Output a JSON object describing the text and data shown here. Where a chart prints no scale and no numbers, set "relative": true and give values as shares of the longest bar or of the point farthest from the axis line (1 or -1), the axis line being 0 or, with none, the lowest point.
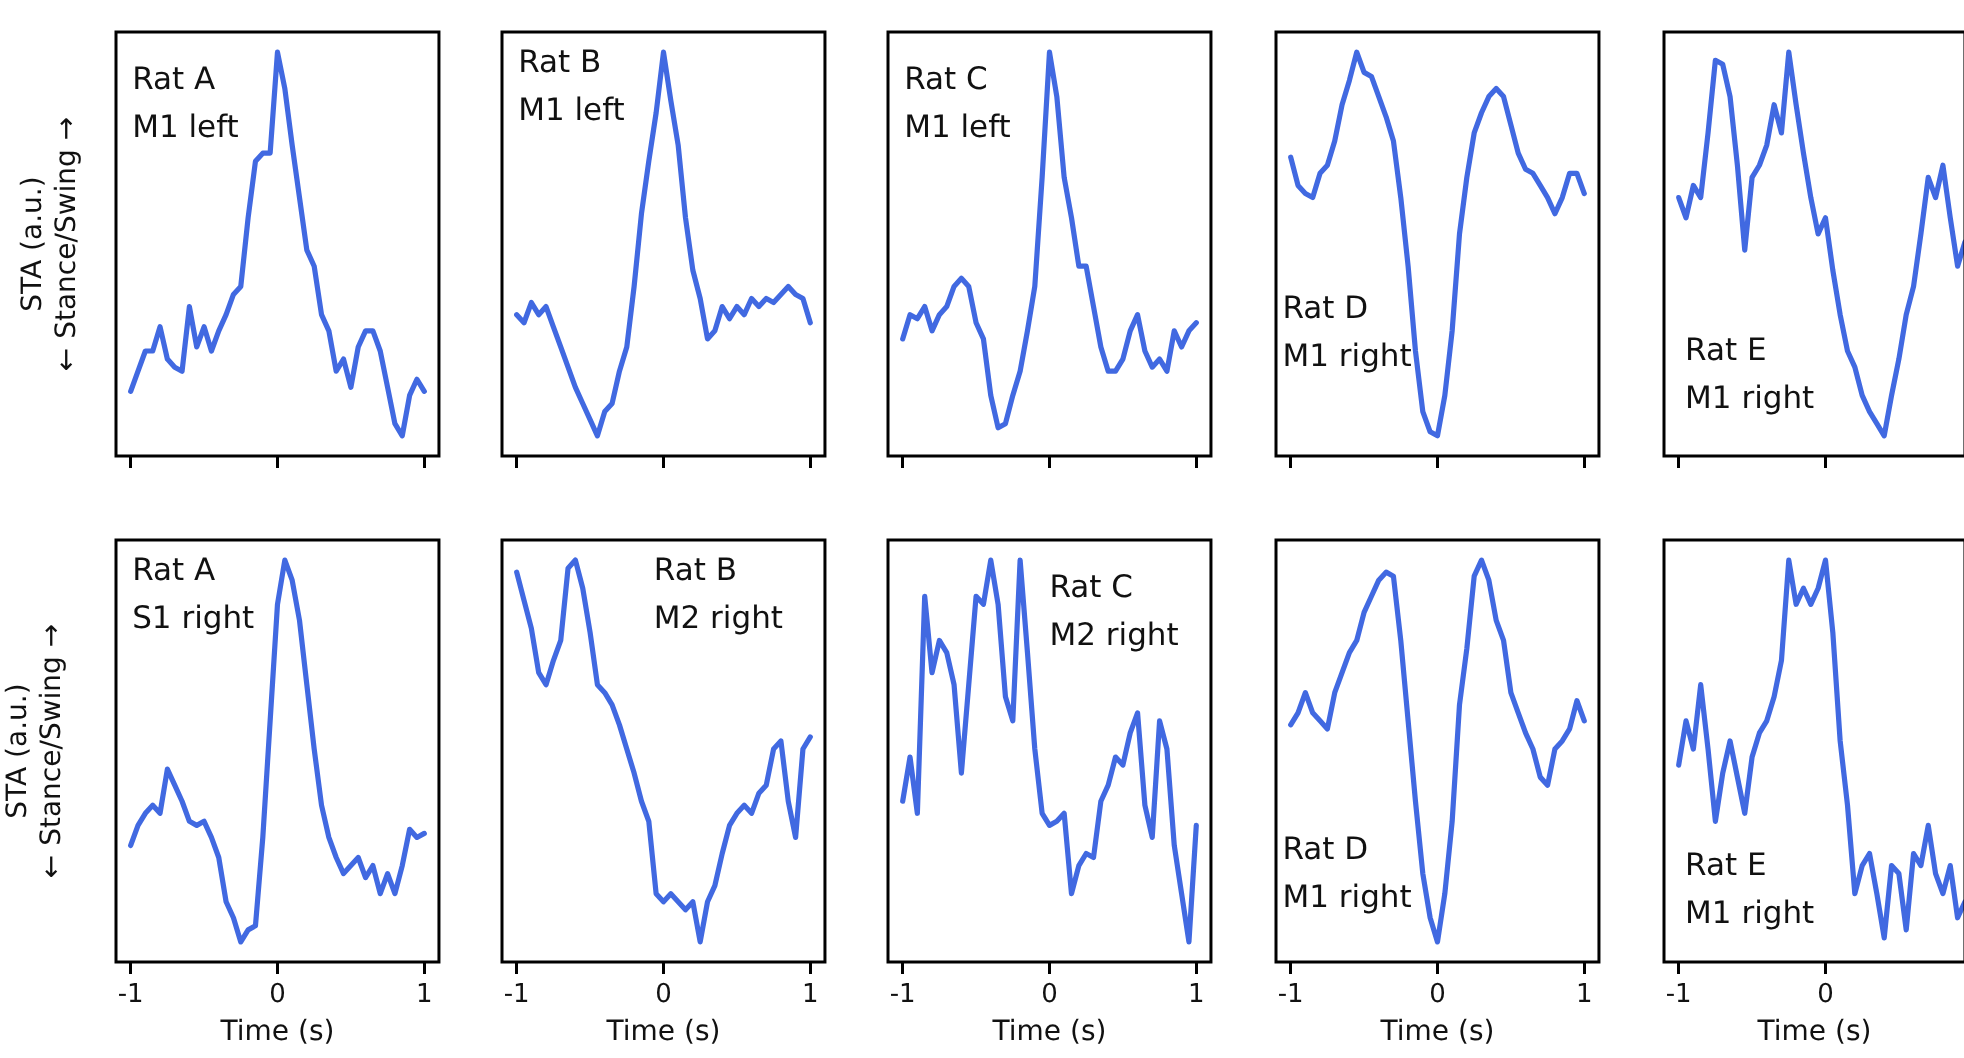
{
  "chart_data": [
    {
      "type": "line",
      "relative": true,
      "annotations": [
        "Rat A",
        "M1 left"
      ],
      "ylabel": "STA (a.u.)\n← Stance/Swing →",
      "tick_labels": false,
      "grid": false,
      "legend": false,
      "marker": "none",
      "categories": [
        null,
        null,
        null,
        null,
        null,
        null,
        null,
        null,
        null,
        null,
        null,
        null,
        null,
        null,
        null,
        null,
        null,
        null,
        null,
        null,
        null,
        null,
        null,
        null,
        null,
        null,
        null,
        null,
        null,
        null,
        null,
        null,
        null,
        null,
        null,
        null,
        null,
        null,
        null,
        null,
        null
      ],
      "series": [
        {
          "color": "#4169e1",
          "values": [
            0.16,
            0.21,
            0.26,
            0.26,
            0.32,
            0.24,
            0.22,
            0.21,
            0.37,
            0.27,
            0.32,
            0.26,
            0.31,
            0.35,
            0.4,
            0.42,
            0.59,
            0.73,
            0.75,
            0.75,
            1,
            0.91,
            0.77,
            0.64,
            0.51,
            0.47,
            0.35,
            0.31,
            0.21,
            0.24,
            0.17,
            0.27,
            0.31,
            0.31,
            0.26,
            0.17,
            0.08,
            0.05,
            0.15,
            0.19,
            0.16
          ]
        }
      ]
    },
    {
      "type": "line",
      "relative": true,
      "annotations": [
        "Rat B",
        "M1 left"
      ],
      "tick_labels": false,
      "grid": false,
      "legend": false,
      "marker": "none",
      "categories": [
        null,
        null,
        null,
        null,
        null,
        null,
        null,
        null,
        null,
        null,
        null,
        null,
        null,
        null,
        null,
        null,
        null,
        null,
        null,
        null,
        null,
        null,
        null,
        null,
        null,
        null,
        null,
        null,
        null,
        null,
        null,
        null,
        null,
        null,
        null,
        null,
        null,
        null,
        null,
        null,
        null
      ],
      "series": [
        {
          "color": "#4169e1",
          "values": [
            0.35,
            0.33,
            0.38,
            0.35,
            0.37,
            0.32,
            0.27,
            0.22,
            0.17,
            0.13,
            0.09,
            0.05,
            0.11,
            0.13,
            0.21,
            0.27,
            0.42,
            0.6,
            0.73,
            0.85,
            1,
            0.88,
            0.77,
            0.59,
            0.46,
            0.39,
            0.29,
            0.31,
            0.37,
            0.34,
            0.37,
            0.35,
            0.39,
            0.37,
            0.39,
            0.38,
            0.4,
            0.42,
            0.4,
            0.39,
            0.33
          ]
        }
      ]
    },
    {
      "type": "line",
      "relative": true,
      "annotations": [
        "Rat C",
        "M1 left"
      ],
      "tick_labels": false,
      "grid": false,
      "legend": false,
      "marker": "none",
      "categories": [
        null,
        null,
        null,
        null,
        null,
        null,
        null,
        null,
        null,
        null,
        null,
        null,
        null,
        null,
        null,
        null,
        null,
        null,
        null,
        null,
        null,
        null,
        null,
        null,
        null,
        null,
        null,
        null,
        null,
        null,
        null,
        null,
        null,
        null,
        null,
        null,
        null,
        null,
        null,
        null,
        null
      ],
      "series": [
        {
          "color": "#4169e1",
          "values": [
            0.29,
            0.35,
            0.34,
            0.37,
            0.31,
            0.35,
            0.37,
            0.42,
            0.44,
            0.42,
            0.33,
            0.29,
            0.15,
            0.07,
            0.08,
            0.15,
            0.21,
            0.31,
            0.42,
            0.69,
            1,
            0.89,
            0.69,
            0.59,
            0.47,
            0.47,
            0.37,
            0.27,
            0.21,
            0.21,
            0.24,
            0.31,
            0.35,
            0.26,
            0.22,
            0.24,
            0.21,
            0.31,
            0.27,
            0.31,
            0.33
          ]
        }
      ]
    },
    {
      "type": "line",
      "relative": true,
      "annotations": [
        "Rat D",
        "M1 right"
      ],
      "tick_labels": false,
      "grid": false,
      "legend": false,
      "marker": "none",
      "categories": [
        null,
        null,
        null,
        null,
        null,
        null,
        null,
        null,
        null,
        null,
        null,
        null,
        null,
        null,
        null,
        null,
        null,
        null,
        null,
        null,
        null,
        null,
        null,
        null,
        null,
        null,
        null,
        null,
        null,
        null,
        null,
        null,
        null,
        null,
        null,
        null,
        null,
        null,
        null,
        null,
        null
      ],
      "series": [
        {
          "color": "#4169e1",
          "values": [
            0.74,
            0.67,
            0.65,
            0.64,
            0.7,
            0.72,
            0.78,
            0.87,
            0.93,
            1,
            0.95,
            0.94,
            0.89,
            0.84,
            0.78,
            0.64,
            0.47,
            0.26,
            0.11,
            0.06,
            0.05,
            0.15,
            0.31,
            0.55,
            0.69,
            0.8,
            0.85,
            0.89,
            0.91,
            0.89,
            0.82,
            0.75,
            0.71,
            0.7,
            0.67,
            0.64,
            0.6,
            0.64,
            0.7,
            0.7,
            0.65
          ]
        }
      ]
    },
    {
      "type": "line",
      "relative": true,
      "annotations": [
        "Rat E",
        "M1 right"
      ],
      "tick_labels": false,
      "grid": false,
      "legend": false,
      "marker": "none",
      "categories": [
        null,
        null,
        null,
        null,
        null,
        null,
        null,
        null,
        null,
        null,
        null,
        null,
        null,
        null,
        null,
        null,
        null,
        null,
        null,
        null,
        null,
        null,
        null,
        null,
        null,
        null,
        null,
        null,
        null,
        null,
        null,
        null,
        null,
        null,
        null,
        null,
        null,
        null,
        null,
        null
      ],
      "series": [
        {
          "color": "#4169e1",
          "values": [
            0.64,
            0.59,
            0.67,
            0.64,
            0.8,
            0.98,
            0.97,
            0.89,
            0.72,
            0.51,
            0.69,
            0.72,
            0.77,
            0.87,
            0.8,
            1,
            0.87,
            0.75,
            0.64,
            0.55,
            0.59,
            0.46,
            0.35,
            0.26,
            0.22,
            0.15,
            0.11,
            0.08,
            0.05,
            0.15,
            0.24,
            0.35,
            0.42,
            0.55,
            0.69,
            0.64,
            0.72,
            0.59,
            0.47,
            0.53
          ]
        }
      ]
    },
    {
      "type": "line",
      "relative": true,
      "annotations": [
        "Rat A",
        "S1 right"
      ],
      "ylabel": "STA (a.u.)\n← Stance/Swing →",
      "xlabel": "Time (s)",
      "tick_labels": "x",
      "grid": false,
      "legend": false,
      "marker": "none",
      "xlim": [
        -1.1,
        1.1
      ],
      "xticks": [
        -1,
        0,
        1
      ],
      "x": [
        -1,
        -0.95,
        -0.9,
        -0.85,
        -0.8,
        -0.75,
        -0.7,
        -0.65,
        -0.6,
        -0.55,
        -0.5,
        -0.45,
        -0.4,
        -0.35,
        -0.3,
        -0.25,
        -0.2,
        -0.15,
        -0.1,
        -0.05,
        0,
        0.05,
        0.1,
        0.15,
        0.2,
        0.25,
        0.3,
        0.35,
        0.4,
        0.45,
        0.5,
        0.55,
        0.6,
        0.65,
        0.7,
        0.75,
        0.8,
        0.85,
        0.9,
        0.95,
        1
      ],
      "series": [
        {
          "color": "#4169e1",
          "values": [
            0.29,
            0.34,
            0.37,
            0.39,
            0.37,
            0.48,
            0.44,
            0.4,
            0.35,
            0.34,
            0.35,
            0.31,
            0.26,
            0.15,
            0.11,
            0.05,
            0.08,
            0.09,
            0.31,
            0.6,
            0.89,
            1,
            0.95,
            0.85,
            0.69,
            0.53,
            0.39,
            0.31,
            0.26,
            0.22,
            0.24,
            0.26,
            0.21,
            0.24,
            0.17,
            0.22,
            0.17,
            0.24,
            0.33,
            0.31,
            0.32
          ]
        }
      ]
    },
    {
      "type": "line",
      "relative": true,
      "annotations": [
        "Rat B",
        "M2 right"
      ],
      "xlabel": "Time (s)",
      "tick_labels": "x",
      "grid": false,
      "legend": false,
      "marker": "none",
      "xlim": [
        -1.1,
        1.1
      ],
      "xticks": [
        -1,
        0,
        1
      ],
      "x": [
        -1,
        -0.95,
        -0.9,
        -0.85,
        -0.8,
        -0.75,
        -0.7,
        -0.65,
        -0.6,
        -0.55,
        -0.5,
        -0.45,
        -0.4,
        -0.35,
        -0.3,
        -0.25,
        -0.2,
        -0.15,
        -0.1,
        -0.05,
        0,
        0.05,
        0.1,
        0.15,
        0.2,
        0.25,
        0.3,
        0.35,
        0.4,
        0.45,
        0.5,
        0.55,
        0.6,
        0.65,
        0.7,
        0.75,
        0.8,
        0.85,
        0.9,
        0.95,
        1
      ],
      "series": [
        {
          "color": "#4169e1",
          "values": [
            0.97,
            0.9,
            0.83,
            0.72,
            0.69,
            0.75,
            0.8,
            0.98,
            1,
            0.93,
            0.82,
            0.69,
            0.67,
            0.64,
            0.59,
            0.53,
            0.47,
            0.4,
            0.35,
            0.17,
            0.15,
            0.17,
            0.15,
            0.13,
            0.15,
            0.05,
            0.15,
            0.19,
            0.27,
            0.34,
            0.37,
            0.39,
            0.37,
            0.42,
            0.44,
            0.53,
            0.55,
            0.4,
            0.31,
            0.53,
            0.56
          ]
        }
      ]
    },
    {
      "type": "line",
      "relative": true,
      "annotations": [
        "Rat C",
        "M2 right"
      ],
      "xlabel": "Time (s)",
      "tick_labels": "x",
      "grid": false,
      "legend": false,
      "marker": "none",
      "xlim": [
        -1.1,
        1.1
      ],
      "xticks": [
        -1,
        0,
        1
      ],
      "x": [
        -1,
        -0.95,
        -0.9,
        -0.85,
        -0.8,
        -0.75,
        -0.7,
        -0.65,
        -0.6,
        -0.55,
        -0.5,
        -0.45,
        -0.4,
        -0.35,
        -0.3,
        -0.25,
        -0.2,
        -0.15,
        -0.1,
        -0.05,
        0,
        0.05,
        0.1,
        0.15,
        0.2,
        0.25,
        0.3,
        0.35,
        0.4,
        0.45,
        0.5,
        0.55,
        0.6,
        0.65,
        0.7,
        0.75,
        0.8,
        0.85,
        0.9,
        0.95,
        1
      ],
      "series": [
        {
          "color": "#4169e1",
          "values": [
            0.4,
            0.51,
            0.37,
            0.91,
            0.72,
            0.8,
            0.77,
            0.69,
            0.47,
            0.69,
            0.91,
            0.89,
            1,
            0.89,
            0.66,
            0.6,
            1,
            0.77,
            0.53,
            0.37,
            0.34,
            0.35,
            0.37,
            0.17,
            0.24,
            0.27,
            0.26,
            0.4,
            0.44,
            0.51,
            0.49,
            0.57,
            0.62,
            0.39,
            0.31,
            0.6,
            0.53,
            0.29,
            0.17,
            0.05,
            0.34
          ]
        }
      ]
    },
    {
      "type": "line",
      "relative": true,
      "annotations": [
        "Rat D",
        "M1 right"
      ],
      "xlabel": "Time (s)",
      "tick_labels": "x",
      "grid": false,
      "legend": false,
      "marker": "none",
      "xlim": [
        -1.1,
        1.1
      ],
      "xticks": [
        -1,
        0,
        1
      ],
      "x": [
        -1,
        -0.95,
        -0.9,
        -0.85,
        -0.8,
        -0.75,
        -0.7,
        -0.65,
        -0.6,
        -0.55,
        -0.5,
        -0.45,
        -0.4,
        -0.35,
        -0.3,
        -0.25,
        -0.2,
        -0.15,
        -0.1,
        -0.05,
        0,
        0.05,
        0.1,
        0.15,
        0.2,
        0.25,
        0.3,
        0.35,
        0.4,
        0.45,
        0.5,
        0.55,
        0.6,
        0.65,
        0.7,
        0.75,
        0.8,
        0.85,
        0.9,
        0.95,
        1
      ],
      "series": [
        {
          "color": "#4169e1",
          "values": [
            0.59,
            0.62,
            0.67,
            0.62,
            0.6,
            0.58,
            0.67,
            0.72,
            0.77,
            0.8,
            0.87,
            0.91,
            0.95,
            0.97,
            0.96,
            0.8,
            0.6,
            0.4,
            0.22,
            0.11,
            0.05,
            0.17,
            0.35,
            0.64,
            0.78,
            0.96,
            1,
            0.95,
            0.85,
            0.8,
            0.67,
            0.62,
            0.57,
            0.53,
            0.46,
            0.44,
            0.53,
            0.55,
            0.58,
            0.65,
            0.6
          ]
        }
      ]
    },
    {
      "type": "line",
      "relative": true,
      "annotations": [
        "Rat E",
        "M1 right"
      ],
      "xlabel": "Time (s)",
      "tick_labels": "x",
      "grid": false,
      "legend": false,
      "marker": "none",
      "xlim": [
        -1.1,
        0.95
      ],
      "xticks": [
        -1,
        0
      ],
      "x": [
        -1,
        -0.95,
        -0.9,
        -0.85,
        -0.8,
        -0.75,
        -0.7,
        -0.65,
        -0.6,
        -0.55,
        -0.5,
        -0.45,
        -0.4,
        -0.35,
        -0.3,
        -0.25,
        -0.2,
        -0.15,
        -0.1,
        -0.05,
        0,
        0.05,
        0.1,
        0.15,
        0.2,
        0.25,
        0.3,
        0.35,
        0.4,
        0.45,
        0.5,
        0.55,
        0.6,
        0.65,
        0.7,
        0.75,
        0.8,
        0.85,
        0.9,
        0.95
      ],
      "series": [
        {
          "color": "#4169e1",
          "values": [
            0.49,
            0.6,
            0.53,
            0.69,
            0.53,
            0.35,
            0.47,
            0.55,
            0.46,
            0.37,
            0.51,
            0.57,
            0.6,
            0.66,
            0.75,
            1,
            0.89,
            0.93,
            0.89,
            0.93,
            1,
            0.82,
            0.55,
            0.39,
            0.17,
            0.24,
            0.27,
            0.17,
            0.06,
            0.24,
            0.22,
            0.08,
            0.27,
            0.24,
            0.34,
            0.22,
            0.17,
            0.24,
            0.11,
            0.15
          ]
        }
      ]
    }
  ]
}
